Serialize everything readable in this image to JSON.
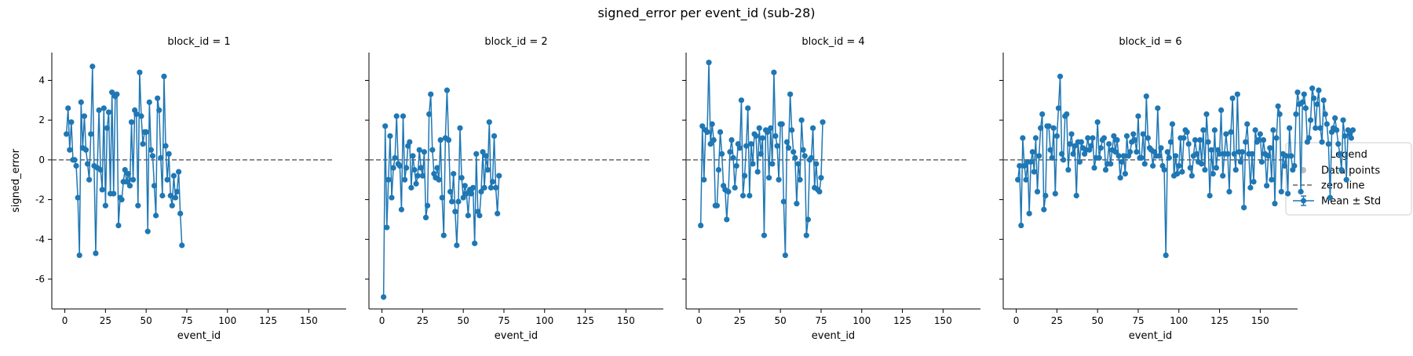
{
  "colors": {
    "series": "#1f77b4",
    "zero_line": "#666666",
    "data_points_marker": "#bdbdbd",
    "axis": "#000000",
    "legend_border": "#cccccc"
  },
  "chart_data": {
    "type": "line",
    "title": "signed_error per event_id (sub-28)",
    "xlabel": "event_id",
    "ylabel": "signed_error",
    "xlim": [
      -8,
      173
    ],
    "ylim": [
      -7.5,
      5.4
    ],
    "xticks": [
      0,
      25,
      50,
      75,
      100,
      125,
      150
    ],
    "yticks": [
      -6,
      -4,
      -2,
      0,
      2,
      4
    ],
    "y_tick_labels_panel": "first panel only (shared y axis)",
    "grid": false,
    "legend": {
      "title": "Legend",
      "placement": "outside right, vertically centered",
      "entries": [
        "Data points",
        "zero line",
        "Mean ± Std"
      ]
    },
    "panels": [
      {
        "title": "block_id = 1",
        "x_start": 1,
        "y": [
          1.3,
          2.6,
          0.5,
          1.9,
          0,
          0,
          -0.3,
          -1.9,
          -4.8,
          2.9,
          0.6,
          2.2,
          0.5,
          -0.2,
          -1.0,
          1.3,
          4.7,
          -0.3,
          -4.7,
          -0.4,
          2.5,
          -0.5,
          -1.5,
          2.6,
          -2.3,
          1.6,
          2.4,
          -1.7,
          3.4,
          -1.7,
          3.2,
          3.3,
          -3.3,
          -1.9,
          -2.0,
          -1.1,
          -0.5,
          -1.1,
          -0.7,
          -1.3,
          1.9,
          -1.0,
          2.5,
          2.3,
          -2.3,
          4.4,
          2.2,
          0.8,
          1.4,
          1.4,
          -3.6,
          2.9,
          0.5,
          0.2,
          -1.3,
          -2.8,
          3.1,
          2.5,
          0.1,
          -1.8,
          4.2,
          0.7,
          -1.0,
          0.3,
          -1.8,
          -2.3,
          -0.8,
          -1.9,
          -1.6,
          -0.6,
          -2.7,
          -4.3
        ]
      },
      {
        "title": "block_id = 2",
        "x_start": 1,
        "y": [
          -6.9,
          1.7,
          -3.4,
          -1.0,
          1.2,
          -1.9,
          -0.4,
          0.1,
          2.2,
          -0.2,
          -0.3,
          -2.5,
          2.2,
          -1.0,
          -0.4,
          0.7,
          0.9,
          -1.4,
          0.2,
          -0.5,
          -1.2,
          -0.8,
          0.5,
          -0.4,
          -0.8,
          0.4,
          -2.9,
          -2.3,
          2.3,
          3.3,
          0.5,
          -0.7,
          -0.9,
          -0.4,
          -1.0,
          1.0,
          -1.9,
          -3.8,
          1.1,
          3.5,
          1.0,
          -1.6,
          -2.1,
          -0.7,
          -2.6,
          -4.3,
          -2.1,
          1.6,
          -0.9,
          -1.9,
          -1.3,
          -1.7,
          -2.8,
          -1.5,
          -1.7,
          -1.4,
          -4.2,
          0.3,
          -2.6,
          -2.8,
          -1.6,
          0.4,
          -1.4,
          0.2,
          -0.5,
          1.9,
          -1.4,
          -1.1,
          1.2,
          -1.4,
          -2.7,
          -0.8
        ]
      },
      {
        "title": "block_id = 4",
        "x_start": 1,
        "y": [
          -3.3,
          1.7,
          -1.0,
          1.5,
          1.4,
          4.9,
          0.8,
          1.8,
          1.0,
          -2.3,
          -2.3,
          -0.5,
          1.4,
          0.3,
          -1.3,
          -1.5,
          -3.0,
          -1.6,
          0.4,
          1.0,
          0.1,
          -1.4,
          -0.3,
          0.8,
          0.6,
          3.0,
          -1.8,
          -0.8,
          0.7,
          2.6,
          -1.8,
          0.8,
          -0.2,
          1.3,
          1.2,
          -0.6,
          1.6,
          0.3,
          1.1,
          -3.8,
          1.5,
          1.4,
          -0.9,
          1.6,
          -0.2,
          4.4,
          1.2,
          0.7,
          -1.0,
          1.8,
          1.8,
          -2.1,
          -4.8,
          0.9,
          0.6,
          3.3,
          1.5,
          0.4,
          0.1,
          -2.2,
          -0.2,
          -1.0,
          2.0,
          0.5,
          0.2,
          -3.8,
          -3.0,
          0,
          0.1,
          1.6,
          -1.4,
          -0.2,
          -1.5,
          -1.6,
          -0.9,
          1.9
        ]
      },
      {
        "title": "block_id = 6",
        "x_start": 1,
        "y": [
          -1.0,
          -0.3,
          -3.3,
          1.1,
          -0.3,
          -1.0,
          -0.1,
          -2.7,
          -0.1,
          0.4,
          -0.6,
          1.1,
          -1.6,
          0.2,
          1.6,
          2.3,
          -2.5,
          -1.8,
          1.7,
          1.7,
          0.5,
          0.1,
          1.6,
          -1.7,
          1.2,
          2.6,
          4.2,
          0.3,
          0,
          2.2,
          2.3,
          -0.5,
          0.8,
          1.3,
          0.3,
          0.7,
          -1.8,
          0.9,
          -0.1,
          0.9,
          0.6,
          0.3,
          0.5,
          1.1,
          0.5,
          0.7,
          1.1,
          -0.4,
          0.1,
          1.9,
          0.1,
          0.6,
          1.0,
          1.1,
          -0.5,
          -0.2,
          0.8,
          -0.2,
          0.5,
          1.2,
          0.4,
          1.0,
          0.2,
          -0.9,
          -0.1,
          0.2,
          -0.7,
          1.2,
          0.2,
          0.4,
          0.9,
          1.3,
          1.0,
          0.4,
          2.2,
          0.1,
          0.1,
          1.3,
          -0.2,
          3.2,
          1.1,
          0.6,
          0.5,
          -0.3,
          0.4,
          0.2,
          2.6,
          0.2,
          0.6,
          -0.3,
          -0.5,
          -4.8,
          0.4,
          0.1,
          0.9,
          1.8,
          -0.8,
          0.2,
          -0.7,
          -0.3,
          1.1,
          -0.6,
          1.1,
          1.5,
          1.4,
          0.8,
          -0.4,
          -0.8,
          0.2,
          1.0,
          0.3,
          -0.1,
          1.0,
          -0.2,
          1.5,
          -0.5,
          2.3,
          0.9,
          -1.8,
          0.5,
          -0.7,
          1.5,
          -0.4,
          0.5,
          0.3,
          2.5,
          -0.8,
          0.3,
          1.3,
          0.3,
          -1.6,
          1.4,
          3.1,
          0.3,
          -0.5,
          3.3,
          0.4,
          -0.1,
          0.4,
          -2.4,
          0.9,
          1.8,
          0.3,
          -1.4,
          0.3,
          -1.1,
          1.5,
          0.9,
          1.0,
          1.3,
          -0.1,
          1.0,
          0.3,
          -1.3,
          0.2,
          0.6,
          -1.0,
          1.5,
          -2.2,
          1.1,
          2.7,
          2.3,
          -1.6,
          0.3,
          -0.3,
          0.2,
          -1.7,
          1.6,
          0.2,
          -0.5,
          -0.3,
          2.3,
          3.4,
          2.8,
          -1.6,
          2.9,
          3.3,
          2.6,
          0.9,
          1.1,
          2.0,
          3.6,
          3.1,
          1.6,
          2.8,
          3.5,
          1.6,
          0.9,
          3.0,
          2.3,
          1.8,
          0.8,
          -1.9,
          1.4,
          1.6,
          2.1,
          1.5,
          0.8,
          0.3,
          -0.5,
          2.0,
          1.2,
          -1.0,
          1.5,
          1.3,
          1.1,
          1.5
        ]
      }
    ]
  }
}
